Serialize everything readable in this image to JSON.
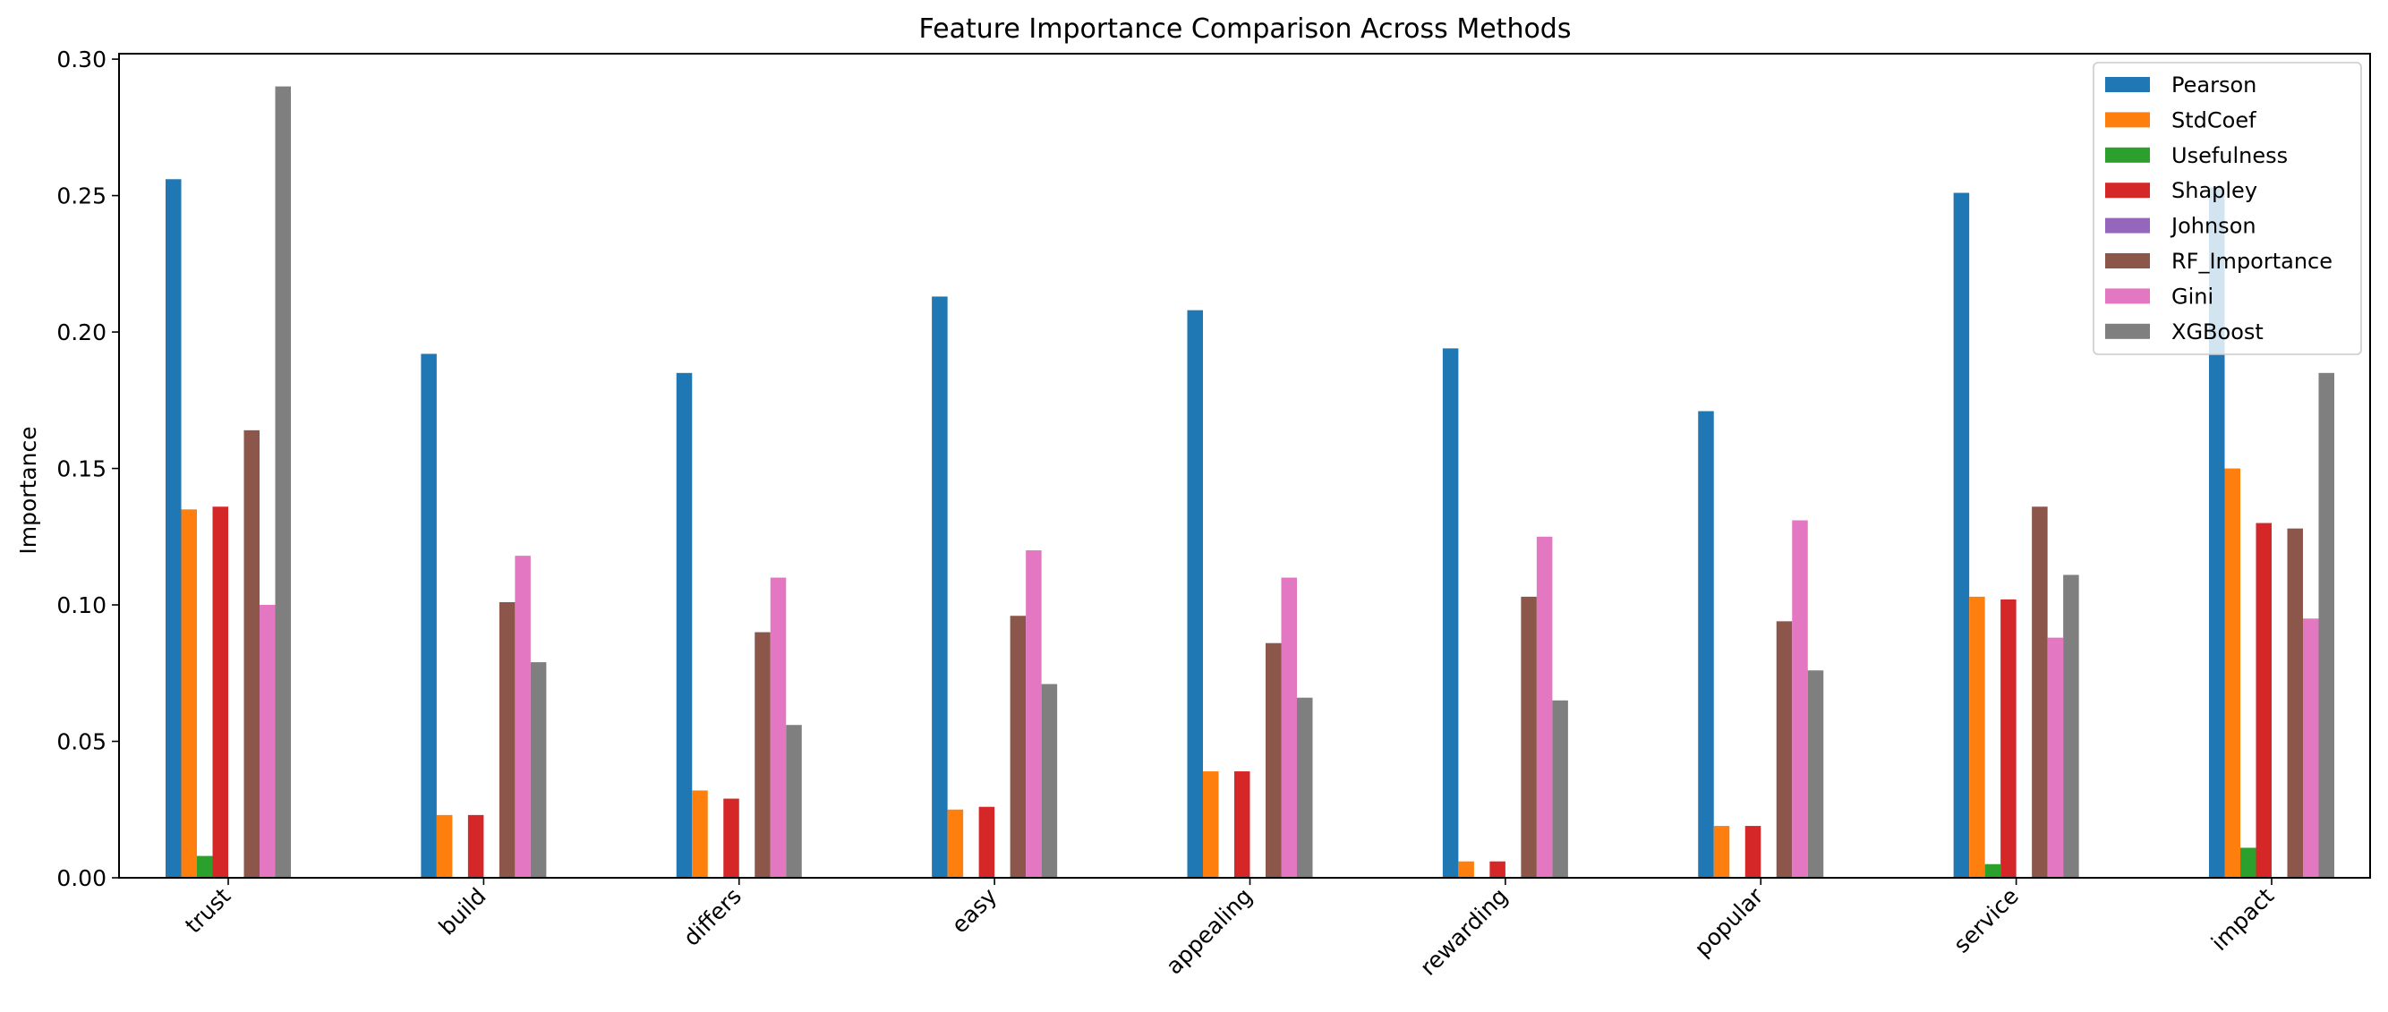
{
  "chart_data": {
    "type": "bar",
    "title": "Feature Importance Comparison Across Methods",
    "xlabel": "",
    "ylabel": "Importance",
    "ylim": [
      0,
      0.302
    ],
    "yticks": [
      0.0,
      0.05,
      0.1,
      0.15,
      0.2,
      0.25,
      0.3
    ],
    "ytick_labels": [
      "0.00",
      "0.05",
      "0.10",
      "0.15",
      "0.20",
      "0.25",
      "0.30"
    ],
    "categories": [
      "trust",
      "build",
      "differs",
      "easy",
      "appealing",
      "rewarding",
      "popular",
      "service",
      "impact"
    ],
    "grid": false,
    "legend_position": "top-right",
    "series": [
      {
        "name": "Pearson",
        "color": "#1f77b4",
        "values": [
          0.256,
          0.192,
          0.185,
          0.213,
          0.208,
          0.194,
          0.171,
          0.251,
          0.253
        ]
      },
      {
        "name": "StdCoef",
        "color": "#ff7f0e",
        "values": [
          0.135,
          0.023,
          0.032,
          0.025,
          0.039,
          0.006,
          0.019,
          0.103,
          0.15
        ]
      },
      {
        "name": "Usefulness",
        "color": "#2ca02c",
        "values": [
          0.008,
          0.0,
          0.0,
          0.0,
          0.0,
          0.0,
          0.0,
          0.005,
          0.011
        ]
      },
      {
        "name": "Shapley",
        "color": "#d62728",
        "values": [
          0.136,
          0.023,
          0.029,
          0.026,
          0.039,
          0.006,
          0.019,
          0.102,
          0.13
        ]
      },
      {
        "name": "Johnson",
        "color": "#9467bd",
        "values": [
          0.0,
          0.0,
          0.0,
          0.0,
          0.0,
          0.0,
          0.0,
          0.0,
          0.0
        ]
      },
      {
        "name": "RF_Importance",
        "color": "#8c564b",
        "values": [
          0.164,
          0.101,
          0.09,
          0.096,
          0.086,
          0.103,
          0.094,
          0.136,
          0.128
        ]
      },
      {
        "name": "Gini",
        "color": "#e377c2",
        "values": [
          0.1,
          0.118,
          0.11,
          0.12,
          0.11,
          0.125,
          0.131,
          0.088,
          0.095
        ]
      },
      {
        "name": "XGBoost",
        "color": "#7f7f7f",
        "values": [
          0.29,
          0.079,
          0.056,
          0.071,
          0.066,
          0.065,
          0.076,
          0.111,
          0.185
        ]
      }
    ]
  }
}
